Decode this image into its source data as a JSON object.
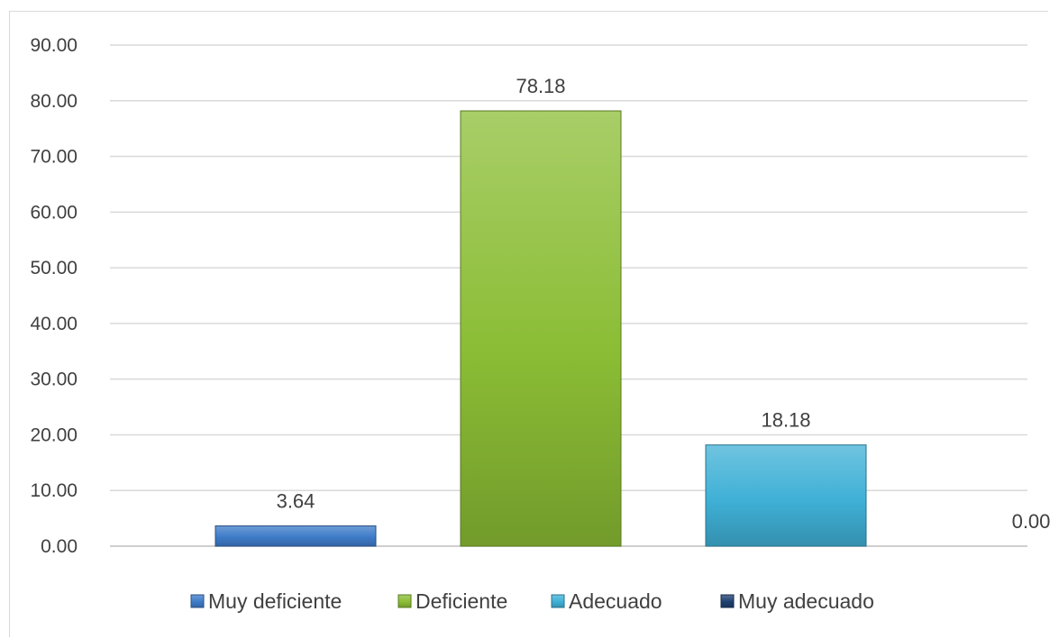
{
  "chart_data": {
    "type": "bar",
    "categories": [
      "Muy deficiente",
      "Deficiente",
      "Adecuado",
      "Muy adecuado"
    ],
    "values": [
      3.64,
      78.18,
      18.18,
      0.0
    ],
    "value_labels": [
      "3.64",
      "78.18",
      "18.18",
      "0.00"
    ],
    "colors": [
      "#3e7bc8",
      "#8bbd35",
      "#3fb0d6",
      "#1f3f70"
    ],
    "ylim": [
      0,
      90
    ],
    "yticks": [
      "0.00",
      "10.00",
      "20.00",
      "30.00",
      "40.00",
      "50.00",
      "60.00",
      "70.00",
      "80.00",
      "90.00"
    ],
    "title": "",
    "xlabel": "",
    "ylabel": "",
    "grid": true,
    "legend_position": "bottom"
  }
}
